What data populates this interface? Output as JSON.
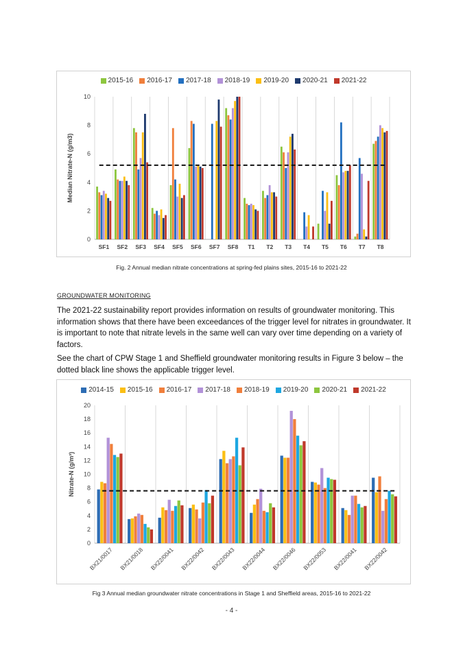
{
  "figure1": {
    "caption": "Fig. 2 Annual median nitrate concentrations at spring-fed plains sites, 2015-16 to 2021-22",
    "chart_data": {
      "type": "bar",
      "ylabel": "Median Nitrate-N (g/m3)",
      "xlabel": "",
      "ylim": [
        0,
        10
      ],
      "yticks": [
        "0",
        "2",
        "4",
        "6",
        "8",
        "10"
      ],
      "grid": "vertical",
      "legend_position": "top",
      "trigger_level": 5.2,
      "categories": [
        "SF1",
        "SF2",
        "SF3",
        "SF4",
        "SF5",
        "SF6",
        "SF7",
        "SF8",
        "T1",
        "T2",
        "T3",
        "T4",
        "T5",
        "T6",
        "T7",
        "T8"
      ],
      "series": [
        {
          "name": "2015-16",
          "color": "#8dc63f",
          "values": [
            3.7,
            4.9,
            7.8,
            2.2,
            3.8,
            6.4,
            0,
            9.2,
            2.9,
            3.4,
            6.5,
            0,
            1.1,
            4.5,
            0.2,
            6.7
          ]
        },
        {
          "name": "2016-17",
          "color": "#f07f3c",
          "values": [
            3.3,
            4.2,
            7.5,
            1.8,
            7.8,
            8.3,
            0,
            8.7,
            2.5,
            2.9,
            6.1,
            0,
            0,
            3.8,
            0.4,
            6.9
          ]
        },
        {
          "name": "2017-18",
          "color": "#2370c0",
          "values": [
            3.1,
            4.1,
            4.9,
            2.0,
            4.2,
            8.1,
            8.1,
            8.4,
            2.4,
            3.1,
            5.0,
            1.9,
            3.4,
            8.2,
            5.7,
            7.2
          ]
        },
        {
          "name": "2018-19",
          "color": "#b292d8",
          "values": [
            3.4,
            4.1,
            5.7,
            1.7,
            3.0,
            5.1,
            0,
            9.2,
            2.5,
            3.8,
            6.1,
            0.9,
            2.0,
            4.7,
            4.6,
            8.0
          ]
        },
        {
          "name": "2019-20",
          "color": "#fbbf14",
          "values": [
            3.2,
            4.4,
            7.5,
            2.1,
            3.9,
            5.2,
            8.3,
            9.7,
            2.4,
            3.3,
            7.2,
            1.7,
            3.3,
            4.8,
            0.7,
            7.8
          ]
        },
        {
          "name": "2020-21",
          "color": "#1e3a6e",
          "values": [
            2.9,
            4.1,
            8.8,
            1.5,
            2.9,
            5.1,
            9.8,
            10.0,
            2.1,
            3.3,
            7.4,
            0,
            1.1,
            4.8,
            0.2,
            7.5
          ]
        },
        {
          "name": "2021-22",
          "color": "#c0392b",
          "values": [
            2.7,
            3.8,
            5.4,
            1.7,
            3.1,
            5.0,
            7.9,
            10.0,
            2.0,
            3.0,
            6.3,
            0.9,
            2.7,
            5.2,
            4.1,
            7.6
          ]
        }
      ]
    }
  },
  "section_heading": "GROUNDWATER MONITORING",
  "paragraph1": "The 2021-22 sustainability report provides information on results of groundwater monitoring. This information shows that there have been exceedances of the trigger level for nitrates in groundwater. It is important to note that nitrate levels in the same well can vary over time depending on a variety of factors.",
  "paragraph2": "See the chart of CPW Stage 1 and Sheffield groundwater monitoring results in Figure 3 below – the dotted black line shows the applicable trigger level.",
  "figure2": {
    "caption": "Fig 3 Annual median groundwater nitrate concentrations in Stage 1 and Sheffield areas, 2015-16 to 2021-22",
    "chart_data": {
      "type": "bar",
      "ylabel": "Nitrate-N (g/m³)",
      "xlabel": "",
      "ylim": [
        0,
        20
      ],
      "yticks": [
        "0",
        "2",
        "4",
        "6",
        "8",
        "10",
        "12",
        "14",
        "16",
        "18",
        "20"
      ],
      "grid": "vertical",
      "legend_position": "top",
      "trigger_level": 7.6,
      "categories": [
        "BX21/0017",
        "BX21/0018",
        "BX22/0041",
        "BX22/0042",
        "BX22/0043",
        "BX22/0044",
        "BX22/0046",
        "BX22/0053",
        "BX22/0041",
        "BX22/0042"
      ],
      "series": [
        {
          "name": "2014-15",
          "color": "#2e6db4",
          "values": [
            7.8,
            3.5,
            3.7,
            5.1,
            12.2,
            4.4,
            12.7,
            8.9,
            5.1,
            9.5
          ]
        },
        {
          "name": "2015-16",
          "color": "#fbbf14",
          "values": [
            8.9,
            3.6,
            5.2,
            5.6,
            13.4,
            5.6,
            12.4,
            8.8,
            4.8,
            7.4
          ]
        },
        {
          "name": "2016-17",
          "color": "#f07f3c",
          "values": [
            8.7,
            3.9,
            4.8,
            4.9,
            11.6,
            6.4,
            12.4,
            8.5,
            4.1,
            9.7
          ]
        },
        {
          "name": "2017-18",
          "color": "#b292d8",
          "values": [
            15.3,
            4.3,
            6.3,
            3.6,
            12.2,
            7.9,
            19.2,
            10.9,
            6.9,
            4.7
          ]
        },
        {
          "name": "2018-19",
          "color": "#f07f3c",
          "values": [
            14.4,
            4.1,
            4.7,
            5.9,
            12.6,
            4.7,
            18.0,
            8.0,
            6.9,
            6.4
          ]
        },
        {
          "name": "2019-20",
          "color": "#1ea7e1",
          "values": [
            12.8,
            2.8,
            5.4,
            7.7,
            15.3,
            4.5,
            15.6,
            9.5,
            5.7,
            7.6
          ]
        },
        {
          "name": "2020-21",
          "color": "#8dc63f",
          "values": [
            12.5,
            2.3,
            6.2,
            5.8,
            11.3,
            5.8,
            14.2,
            9.3,
            5.2,
            7.1
          ]
        },
        {
          "name": "2021-22",
          "color": "#c0392b",
          "values": [
            13.0,
            2.0,
            5.5,
            6.9,
            13.9,
            5.2,
            14.8,
            9.2,
            5.4,
            6.8
          ]
        }
      ]
    }
  },
  "page_number": "- 4 -"
}
